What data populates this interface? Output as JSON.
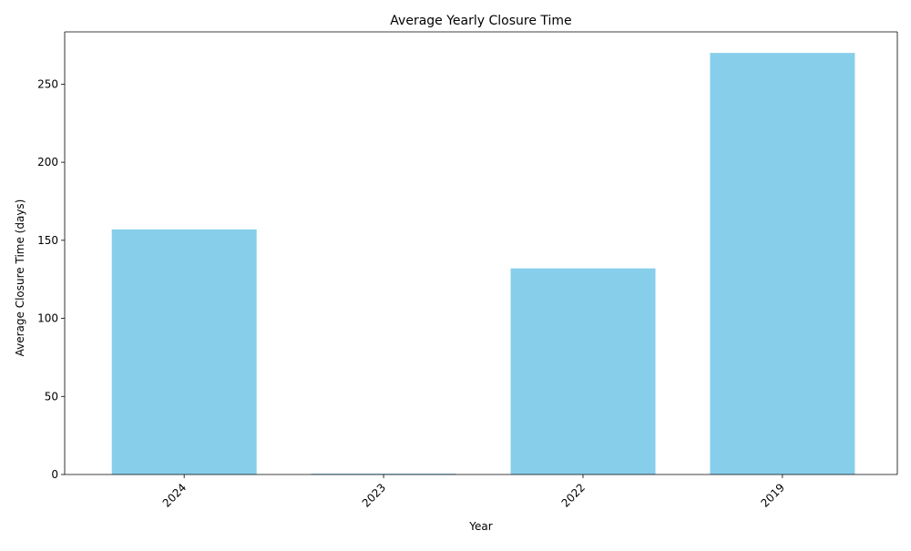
{
  "chart_data": {
    "type": "bar",
    "title": "Average Yearly Closure Time",
    "xlabel": "Year",
    "ylabel": "Average Closure Time (days)",
    "categories": [
      "2024",
      "2023",
      "2022",
      "2019"
    ],
    "values": [
      157,
      0.5,
      132,
      270
    ],
    "ylim": [
      0,
      283.5
    ],
    "yticks": [
      0,
      50,
      100,
      150,
      200,
      250
    ],
    "bar_color": "#87CEEB",
    "grid": false,
    "legend": "none",
    "x_tick_rotation": 45
  }
}
